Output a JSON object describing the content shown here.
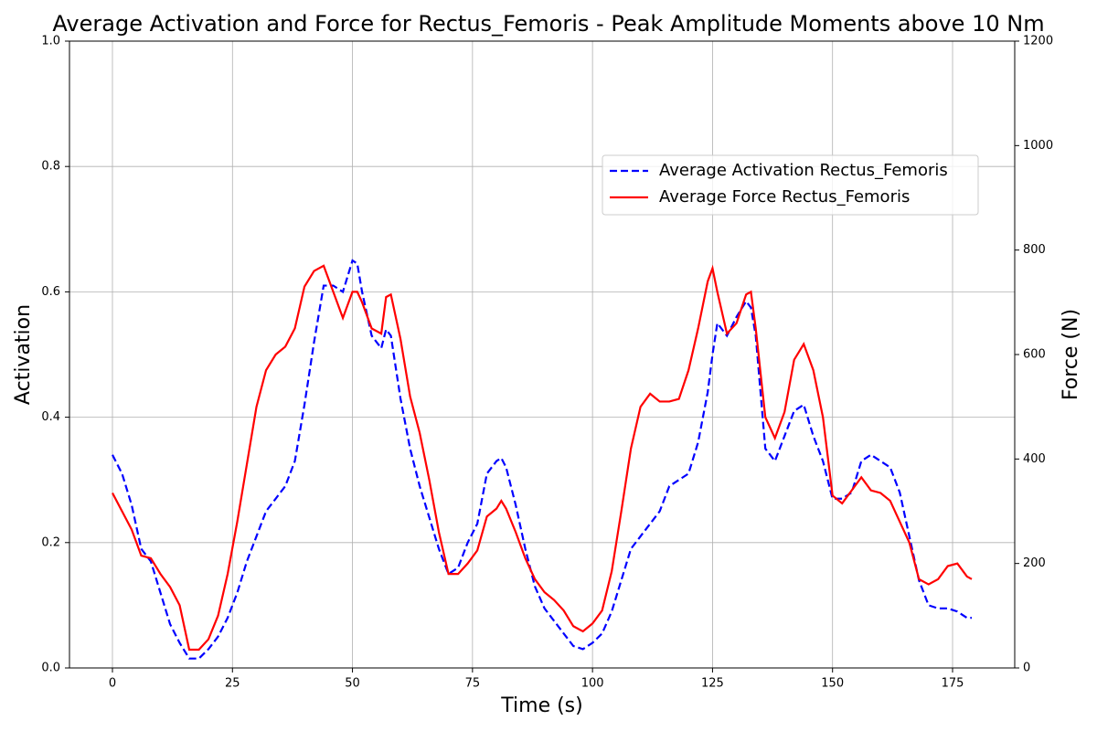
{
  "chart_data": {
    "type": "line",
    "title": "Average Activation and Force for Rectus_Femoris - Peak Amplitude Moments above 10 Nm",
    "x_label": "Time (s)",
    "y_label": "Activation",
    "y2_label": "Force (N)",
    "y_label_color": "#0000ff",
    "y2_label_color": "#ff0000",
    "x": [
      0,
      2,
      4,
      6,
      8,
      10,
      12,
      14,
      16,
      18,
      20,
      22,
      24,
      26,
      28,
      30,
      32,
      34,
      36,
      38,
      40,
      42,
      44,
      46,
      48,
      50,
      51,
      52,
      54,
      56,
      57,
      58,
      60,
      62,
      64,
      66,
      68,
      70,
      72,
      74,
      76,
      78,
      80,
      81,
      82,
      84,
      86,
      88,
      90,
      92,
      94,
      96,
      98,
      100,
      102,
      104,
      106,
      108,
      110,
      112,
      114,
      116,
      118,
      120,
      122,
      124,
      125,
      126,
      128,
      130,
      132,
      133,
      134,
      136,
      138,
      140,
      142,
      144,
      146,
      148,
      150,
      152,
      154,
      156,
      158,
      160,
      162,
      164,
      166,
      168,
      170,
      172,
      174,
      176,
      178,
      179
    ],
    "series": [
      {
        "name": "Average Activation Rectus_Femoris",
        "color": "#0000ff",
        "linestyle": "dashed",
        "values": [
          0.34,
          0.31,
          0.26,
          0.19,
          0.17,
          0.12,
          0.07,
          0.04,
          0.015,
          0.015,
          0.03,
          0.05,
          0.08,
          0.12,
          0.17,
          0.21,
          0.25,
          0.27,
          0.29,
          0.33,
          0.42,
          0.52,
          0.61,
          0.61,
          0.6,
          0.65,
          0.645,
          0.6,
          0.53,
          0.51,
          0.54,
          0.53,
          0.43,
          0.35,
          0.29,
          0.24,
          0.19,
          0.15,
          0.16,
          0.2,
          0.23,
          0.31,
          0.33,
          0.335,
          0.32,
          0.26,
          0.19,
          0.13,
          0.095,
          0.075,
          0.055,
          0.035,
          0.03,
          0.04,
          0.055,
          0.09,
          0.14,
          0.19,
          0.21,
          0.23,
          0.25,
          0.29,
          0.3,
          0.31,
          0.36,
          0.44,
          0.5,
          0.55,
          0.53,
          0.56,
          0.585,
          0.575,
          0.53,
          0.35,
          0.33,
          0.37,
          0.41,
          0.42,
          0.37,
          0.33,
          0.27,
          0.27,
          0.28,
          0.33,
          0.34,
          0.33,
          0.32,
          0.28,
          0.21,
          0.14,
          0.1,
          0.095,
          0.095,
          0.09,
          0.08,
          0.08
        ]
      },
      {
        "name": "Average Force Rectus_Femoris",
        "color": "#ff0000",
        "linestyle": "solid",
        "axis": "y2",
        "values": [
          335,
          300,
          265,
          215,
          210,
          180,
          155,
          120,
          35,
          35,
          55,
          100,
          180,
          280,
          390,
          500,
          570,
          600,
          615,
          650,
          730,
          760,
          770,
          720,
          670,
          720,
          720,
          700,
          650,
          640,
          710,
          715,
          630,
          520,
          450,
          360,
          260,
          180,
          180,
          200,
          225,
          290,
          305,
          320,
          305,
          260,
          210,
          170,
          145,
          130,
          110,
          80,
          70,
          85,
          110,
          185,
          300,
          420,
          500,
          525,
          510,
          510,
          515,
          570,
          650,
          740,
          765,
          720,
          640,
          660,
          715,
          720,
          650,
          480,
          440,
          490,
          590,
          620,
          570,
          480,
          330,
          315,
          340,
          365,
          340,
          335,
          320,
          280,
          240,
          170,
          160,
          170,
          195,
          200,
          175,
          170
        ]
      }
    ],
    "xlim": [
      -8.95,
      187.95
    ],
    "xticks": [
      0,
      25,
      50,
      75,
      100,
      125,
      150,
      175
    ],
    "ylim": [
      0,
      1
    ],
    "yticks": [
      {
        "value": 0,
        "label": "0.0"
      },
      0.2,
      0.4,
      0.6,
      0.8,
      {
        "value": 1,
        "label": "1.0"
      }
    ],
    "y2lim": [
      0,
      1200
    ],
    "y2ticks": [
      0,
      200,
      400,
      600,
      800,
      1000,
      1200
    ],
    "grid": true,
    "legend_loc": "upper right"
  }
}
